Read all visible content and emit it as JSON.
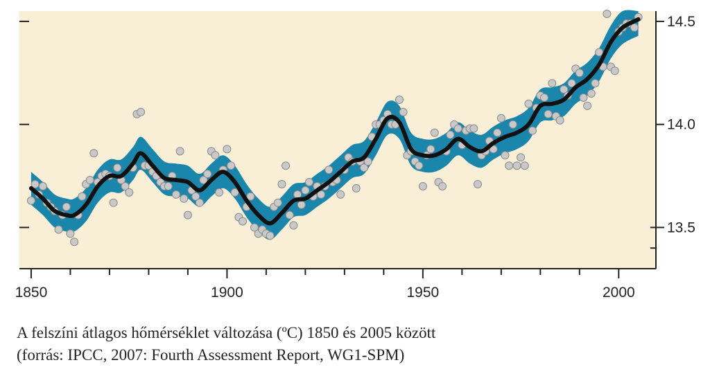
{
  "caption": {
    "line1": "A felszíni átlagos hőmérséklet változása (ºC) 1850 és 2005 között",
    "line2": "(forrás: IPCC, 2007: Fourth Assessment Report, WG1-SPM)"
  },
  "colors": {
    "plot_background": "#f8efd6",
    "band": "#1a86ac",
    "smooth_line": "#111111",
    "points_fill": "#c9c9c9",
    "points_stroke": "#8a8a8a",
    "axis": "#222222"
  },
  "chart_data": {
    "type": "line",
    "title": "",
    "xlabel": "",
    "ylabel": "",
    "xlim": [
      1847,
      2009.5
    ],
    "ylim": [
      13.3,
      14.55
    ],
    "x_ticks": [
      1850,
      1900,
      1950,
      2000
    ],
    "x_tick_labels": [
      "1850",
      "1900",
      "1950",
      "2000"
    ],
    "y_ticks": [
      13.5,
      14.0,
      14.5
    ],
    "y_tick_labels": [
      "13.5",
      "14.0",
      "14.5"
    ],
    "y_axis_side": "right",
    "grid": false,
    "legend": "none",
    "series": [
      {
        "kind": "smoothed",
        "x": [
          1850,
          1853,
          1856,
          1859,
          1861,
          1864,
          1867,
          1870,
          1873,
          1876,
          1878,
          1881,
          1884,
          1887,
          1890,
          1893,
          1896,
          1899,
          1902,
          1905,
          1908,
          1911,
          1914,
          1917,
          1920,
          1923,
          1926,
          1929,
          1932,
          1935,
          1938,
          1941,
          1944,
          1947,
          1950,
          1953,
          1956,
          1959,
          1962,
          1965,
          1968,
          1971,
          1974,
          1977,
          1980,
          1983,
          1986,
          1989,
          1992,
          1995,
          1998,
          2001,
          2005
        ],
        "values": [
          13.69,
          13.64,
          13.58,
          13.56,
          13.56,
          13.61,
          13.7,
          13.75,
          13.75,
          13.81,
          13.86,
          13.8,
          13.74,
          13.73,
          13.72,
          13.68,
          13.73,
          13.77,
          13.72,
          13.63,
          13.56,
          13.52,
          13.57,
          13.63,
          13.64,
          13.68,
          13.72,
          13.77,
          13.82,
          13.84,
          13.93,
          14.03,
          14.01,
          13.88,
          13.85,
          13.85,
          13.88,
          13.93,
          13.89,
          13.87,
          13.91,
          13.94,
          13.96,
          14.0,
          14.09,
          14.1,
          14.12,
          14.18,
          14.22,
          14.29,
          14.4,
          14.47,
          14.51
        ]
      },
      {
        "kind": "uncertainty_band_halfwidth",
        "value": 0.08
      },
      {
        "kind": "annual",
        "x": [
          1850,
          1851,
          1852,
          1853,
          1854,
          1855,
          1856,
          1857,
          1858,
          1859,
          1860,
          1861,
          1862,
          1863,
          1864,
          1865,
          1866,
          1867,
          1868,
          1869,
          1870,
          1871,
          1872,
          1873,
          1874,
          1875,
          1876,
          1877,
          1878,
          1879,
          1880,
          1881,
          1882,
          1883,
          1884,
          1885,
          1886,
          1887,
          1888,
          1889,
          1890,
          1891,
          1892,
          1893,
          1894,
          1895,
          1896,
          1897,
          1898,
          1899,
          1900,
          1901,
          1902,
          1903,
          1904,
          1905,
          1906,
          1907,
          1908,
          1909,
          1910,
          1911,
          1912,
          1913,
          1914,
          1915,
          1916,
          1917,
          1918,
          1919,
          1920,
          1921,
          1922,
          1923,
          1924,
          1925,
          1926,
          1927,
          1928,
          1929,
          1930,
          1931,
          1932,
          1933,
          1934,
          1935,
          1936,
          1937,
          1938,
          1939,
          1940,
          1941,
          1942,
          1943,
          1944,
          1945,
          1946,
          1947,
          1948,
          1949,
          1950,
          1951,
          1952,
          1953,
          1954,
          1955,
          1956,
          1957,
          1958,
          1959,
          1960,
          1961,
          1962,
          1963,
          1964,
          1965,
          1966,
          1967,
          1968,
          1969,
          1970,
          1971,
          1972,
          1973,
          1974,
          1975,
          1976,
          1977,
          1978,
          1979,
          1980,
          1981,
          1982,
          1983,
          1984,
          1985,
          1986,
          1987,
          1988,
          1989,
          1990,
          1991,
          1992,
          1993,
          1994,
          1995,
          1996,
          1997,
          1998,
          1999,
          2000,
          2001,
          2002,
          2003,
          2004,
          2005
        ],
        "values": [
          13.63,
          13.71,
          13.66,
          13.7,
          13.62,
          13.6,
          13.58,
          13.49,
          13.56,
          13.6,
          13.47,
          13.43,
          13.56,
          13.65,
          13.71,
          13.73,
          13.86,
          13.72,
          13.75,
          13.76,
          13.75,
          13.62,
          13.79,
          13.73,
          13.7,
          13.67,
          13.79,
          14.05,
          14.06,
          13.8,
          13.8,
          13.77,
          13.75,
          13.72,
          13.7,
          13.7,
          13.75,
          13.66,
          13.87,
          13.64,
          13.56,
          13.68,
          13.65,
          13.62,
          13.73,
          13.76,
          13.87,
          13.85,
          13.67,
          13.78,
          13.88,
          13.8,
          13.67,
          13.55,
          13.53,
          13.6,
          13.65,
          13.5,
          13.47,
          13.49,
          13.47,
          13.46,
          13.6,
          13.62,
          13.71,
          13.8,
          13.56,
          13.51,
          13.66,
          13.61,
          13.68,
          13.72,
          13.65,
          13.7,
          13.66,
          13.7,
          13.78,
          13.72,
          13.73,
          13.66,
          13.78,
          13.84,
          13.82,
          13.69,
          13.82,
          13.79,
          13.82,
          13.94,
          14.0,
          14.0,
          14.02,
          14.05,
          14.0,
          14.0,
          14.12,
          14.06,
          13.85,
          13.87,
          13.82,
          13.8,
          13.7,
          13.85,
          13.88,
          13.96,
          13.72,
          13.7,
          13.87,
          13.95,
          14.0,
          13.98,
          13.9,
          13.97,
          13.98,
          13.98,
          13.71,
          13.85,
          13.87,
          13.92,
          13.88,
          13.96,
          14.03,
          13.85,
          13.8,
          14.0,
          13.8,
          13.84,
          13.8,
          14.1,
          13.97,
          14.08,
          14.14,
          14.13,
          14.05,
          14.2,
          14.04,
          14.02,
          14.17,
          14.14,
          14.2,
          14.27,
          14.25,
          14.13,
          14.09,
          14.15,
          14.2,
          14.35,
          14.28,
          14.55,
          14.28,
          14.26,
          14.45,
          14.47,
          14.49,
          14.49,
          14.47,
          14.52
        ]
      }
    ]
  }
}
